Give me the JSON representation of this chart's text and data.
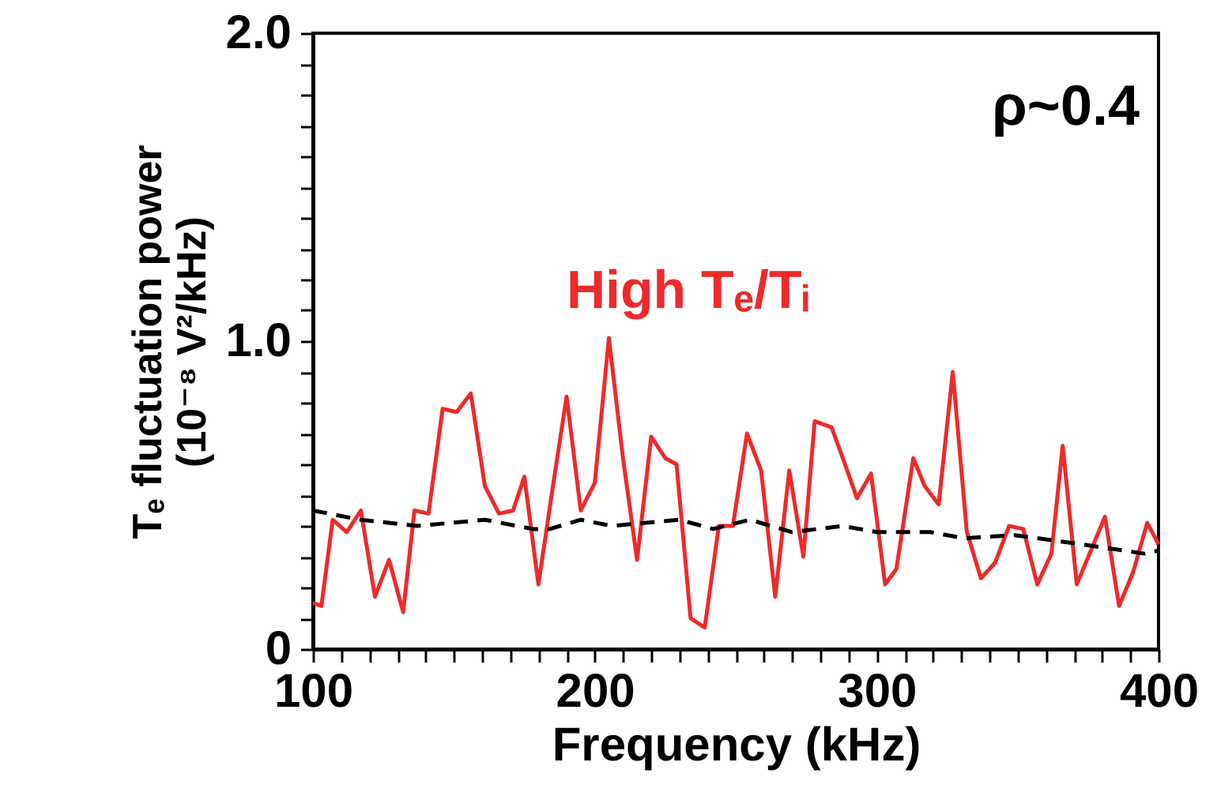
{
  "chart_data": {
    "type": "line",
    "xlabel": "Frequency  (kHz)",
    "ylabel": "Tₑ fluctuation power\n(10⁻⁸ V²/kHz)",
    "annotations": [
      "ρ~0.4"
    ],
    "xlim": [
      100,
      400
    ],
    "ylim": [
      0,
      2
    ],
    "xticks": [
      100,
      {
        "value": 110,
        "label": null
      },
      {
        "value": 120,
        "label": null
      },
      {
        "value": 130,
        "label": null
      },
      {
        "value": 140,
        "label": null
      },
      {
        "value": 150,
        "label": null
      },
      {
        "value": 160,
        "label": null
      },
      {
        "value": 170,
        "label": null
      },
      {
        "value": 180,
        "label": null
      },
      {
        "value": 190,
        "label": null
      },
      200,
      {
        "value": 210,
        "label": null
      },
      {
        "value": 220,
        "label": null
      },
      {
        "value": 230,
        "label": null
      },
      {
        "value": 240,
        "label": null
      },
      {
        "value": 250,
        "label": null
      },
      {
        "value": 260,
        "label": null
      },
      {
        "value": 270,
        "label": null
      },
      {
        "value": 280,
        "label": null
      },
      {
        "value": 290,
        "label": null
      },
      300,
      {
        "value": 310,
        "label": null
      },
      {
        "value": 320,
        "label": null
      },
      {
        "value": 330,
        "label": null
      },
      {
        "value": 340,
        "label": null
      },
      {
        "value": 350,
        "label": null
      },
      {
        "value": 360,
        "label": null
      },
      {
        "value": 370,
        "label": null
      },
      {
        "value": 380,
        "label": null
      },
      {
        "value": 390,
        "label": null
      },
      400
    ],
    "yticks": [
      0,
      {
        "value": 0.1,
        "label": null
      },
      {
        "value": 0.2,
        "label": null
      },
      {
        "value": 0.3,
        "label": null
      },
      {
        "value": 0.4,
        "label": null
      },
      {
        "value": 0.5,
        "label": null
      },
      {
        "value": 0.6,
        "label": null
      },
      {
        "value": 0.7,
        "label": null
      },
      {
        "value": 0.8,
        "label": null
      },
      {
        "value": 0.9,
        "label": null
      },
      {
        "value": 1,
        "label": "1.0"
      },
      {
        "value": 1.1,
        "label": null
      },
      {
        "value": 1.2,
        "label": null
      },
      {
        "value": 1.3,
        "label": null
      },
      {
        "value": 1.4,
        "label": null
      },
      {
        "value": 1.5,
        "label": null
      },
      {
        "value": 1.6,
        "label": null
      },
      {
        "value": 1.7,
        "label": null
      },
      {
        "value": 1.8,
        "label": null
      },
      {
        "value": 1.9,
        "label": null
      },
      {
        "value": 2,
        "label": "2.0"
      }
    ],
    "grid": false,
    "legend": false,
    "marker": "none",
    "series": [
      {
        "name": "High Tₑ/Tᵢ",
        "color": "#ee2a2a",
        "line_style": "solid",
        "x": [
          100,
          103,
          107,
          112,
          117,
          122,
          127,
          132,
          136,
          141,
          146,
          151,
          156,
          161,
          166,
          171,
          175,
          180,
          185,
          190,
          195,
          200,
          205,
          210,
          215,
          220,
          225,
          229,
          234,
          239,
          244,
          249,
          254,
          259,
          264,
          269,
          274,
          278,
          284,
          288,
          293,
          298,
          303,
          307,
          313,
          317,
          322,
          327,
          332,
          337,
          342,
          347,
          352,
          357,
          362,
          366,
          371,
          376,
          381,
          386,
          391,
          396,
          400
        ],
        "values": [
          0.15,
          0.14,
          0.42,
          0.38,
          0.45,
          0.17,
          0.29,
          0.12,
          0.45,
          0.44,
          0.78,
          0.77,
          0.83,
          0.53,
          0.44,
          0.45,
          0.56,
          0.21,
          0.52,
          0.82,
          0.45,
          0.54,
          1.01,
          0.62,
          0.29,
          0.69,
          0.62,
          0.6,
          0.1,
          0.07,
          0.4,
          0.4,
          0.7,
          0.58,
          0.17,
          0.58,
          0.3,
          0.74,
          0.72,
          0.62,
          0.49,
          0.57,
          0.21,
          0.26,
          0.62,
          0.53,
          0.47,
          0.9,
          0.38,
          0.23,
          0.28,
          0.4,
          0.39,
          0.21,
          0.31,
          0.66,
          0.21,
          0.32,
          0.43,
          0.14,
          0.25,
          0.41,
          0.34
        ]
      },
      {
        "color": "#000000",
        "line_style": "dashed",
        "x": [
          100,
          117,
          137,
          161,
          178,
          184,
          195,
          206,
          230,
          242,
          255,
          270,
          288,
          300,
          319,
          331,
          349,
          373,
          395,
          400
        ],
        "values": [
          0.45,
          0.42,
          0.4,
          0.42,
          0.39,
          0.39,
          0.42,
          0.4,
          0.42,
          0.39,
          0.42,
          0.38,
          0.4,
          0.38,
          0.38,
          0.36,
          0.37,
          0.34,
          0.31,
          0.32
        ]
      }
    ]
  }
}
